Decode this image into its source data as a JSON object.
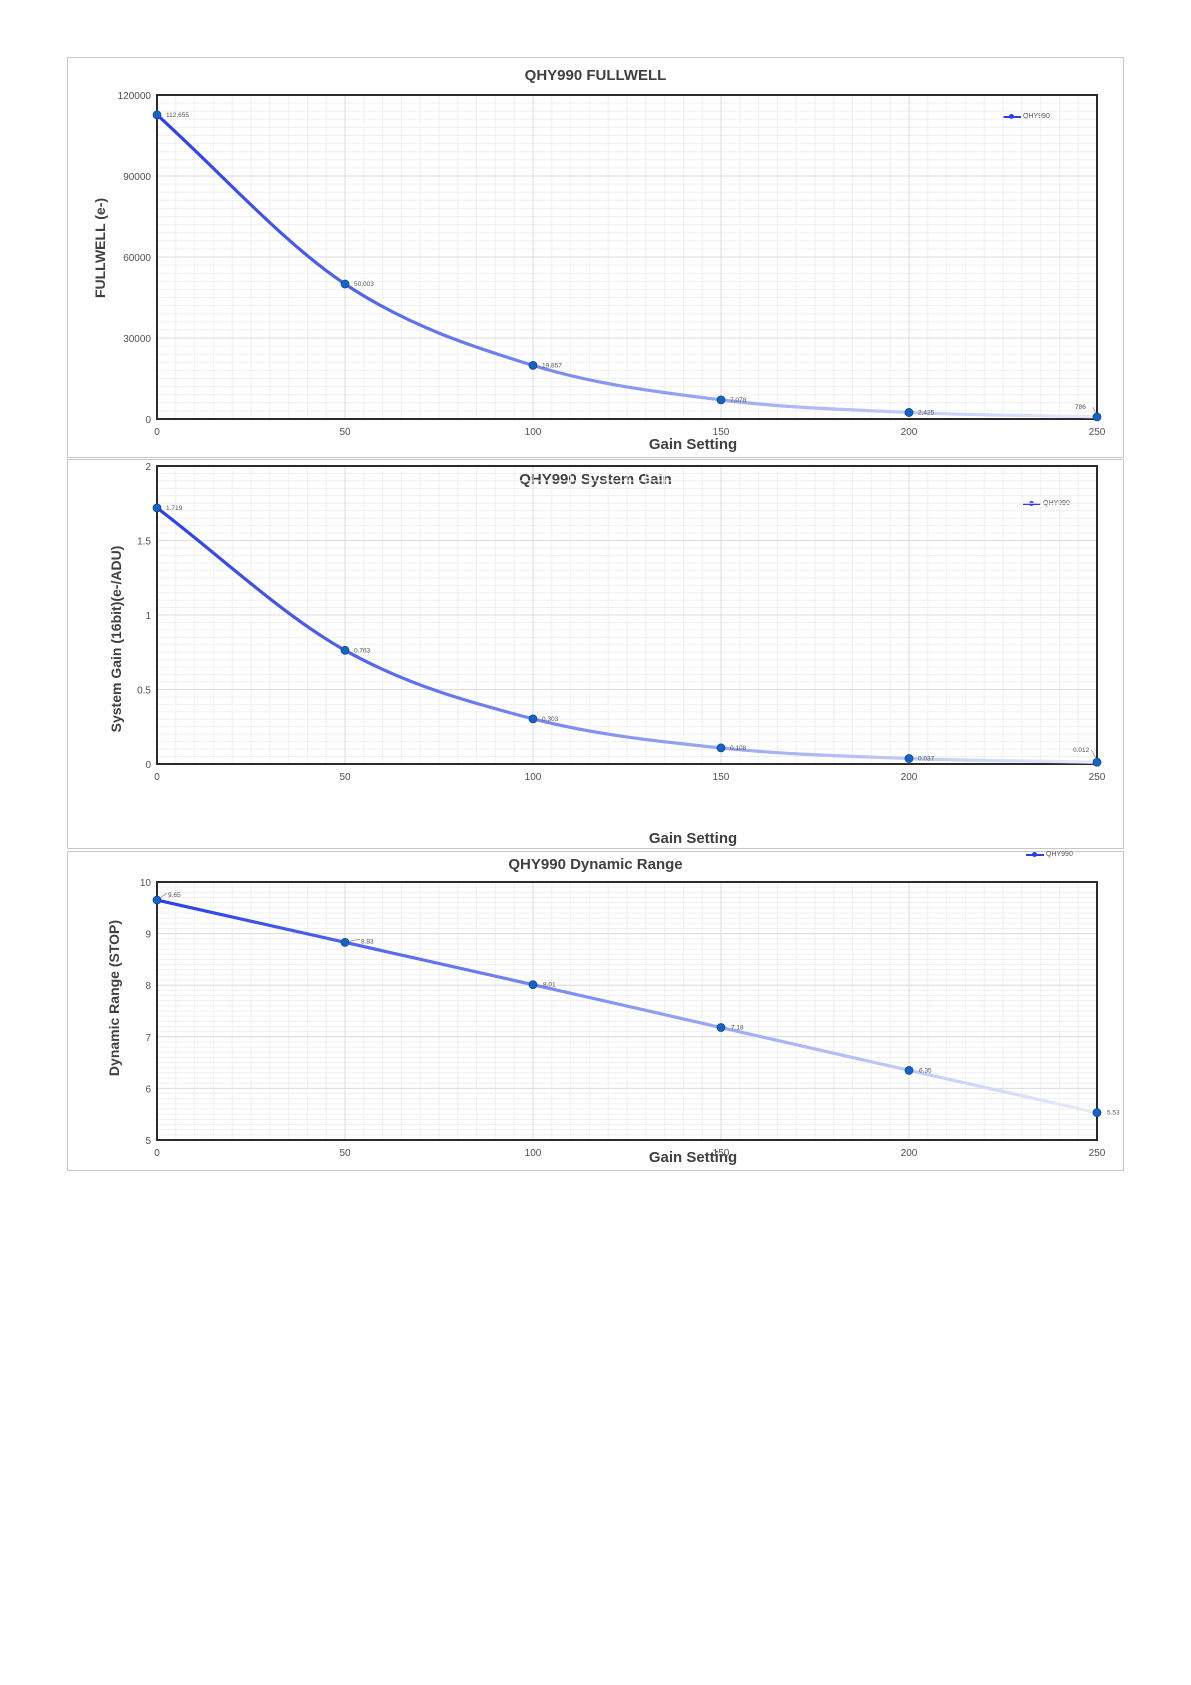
{
  "chart_data": [
    {
      "type": "line",
      "title": "QHY990 FULLWELL",
      "xlabel": "Gain Setting",
      "ylabel": "FULLWELL (e-)",
      "x": [
        0,
        50,
        100,
        150,
        200,
        250
      ],
      "series": [
        {
          "name": "QHY990",
          "values": [
            112655,
            50003,
            19857,
            7078,
            2425,
            786
          ]
        }
      ],
      "data_labels": [
        "112,655",
        "50,003",
        "19,857",
        "7,078",
        "2,425",
        "786"
      ],
      "xlim": [
        0,
        250
      ],
      "ylim": [
        0,
        120000
      ],
      "xticks": [
        "0",
        "50",
        "100",
        "150",
        "200",
        "250"
      ],
      "yticks": [
        "0",
        "30000",
        "60000",
        "90000",
        "120000"
      ],
      "grid": true,
      "legend_position": "top-right",
      "line_color": "#2a3fe8",
      "marker_color": "#1565c0"
    },
    {
      "type": "line",
      "title": "QHY990 System Gain",
      "xlabel": "Gain Setting",
      "ylabel": "System Gain (16bit)(e-/ADU)",
      "x": [
        0,
        50,
        100,
        150,
        200,
        250
      ],
      "series": [
        {
          "name": "QHY990",
          "values": [
            1.719,
            0.763,
            0.303,
            0.108,
            0.037,
            0.012
          ]
        }
      ],
      "data_labels": [
        "1.719",
        "0.763",
        "0.303",
        "0.108",
        "0.037",
        "0.012"
      ],
      "xlim": [
        0,
        250
      ],
      "ylim": [
        0,
        2
      ],
      "xticks": [
        "0",
        "50",
        "100",
        "150",
        "200",
        "250"
      ],
      "yticks": [
        "0",
        "0.5",
        "1",
        "1.5",
        "2"
      ],
      "grid": true,
      "legend_position": "top-right",
      "line_color": "#2a3fe8",
      "marker_color": "#1565c0"
    },
    {
      "type": "line",
      "title": "QHY990 Dynamic Range",
      "xlabel": "Gain Setting",
      "ylabel": "Dynamic Range (STOP)",
      "x": [
        0,
        50,
        100,
        150,
        200,
        250
      ],
      "series": [
        {
          "name": "QHY990",
          "values": [
            9.65,
            8.83,
            8.01,
            7.18,
            6.35,
            5.53
          ]
        }
      ],
      "data_labels": [
        "9.65",
        "8.83",
        "8.01",
        "7.18",
        "6.35",
        "5.53"
      ],
      "xlim": [
        0,
        250
      ],
      "ylim": [
        5,
        10
      ],
      "xticks": [
        "0",
        "50",
        "100",
        "150",
        "200",
        "250"
      ],
      "yticks": [
        "5",
        "6",
        "7",
        "8",
        "9",
        "10"
      ],
      "grid": true,
      "legend_position": "top-right",
      "line_color": "#2a3fe8",
      "marker_color": "#1565c0"
    }
  ]
}
